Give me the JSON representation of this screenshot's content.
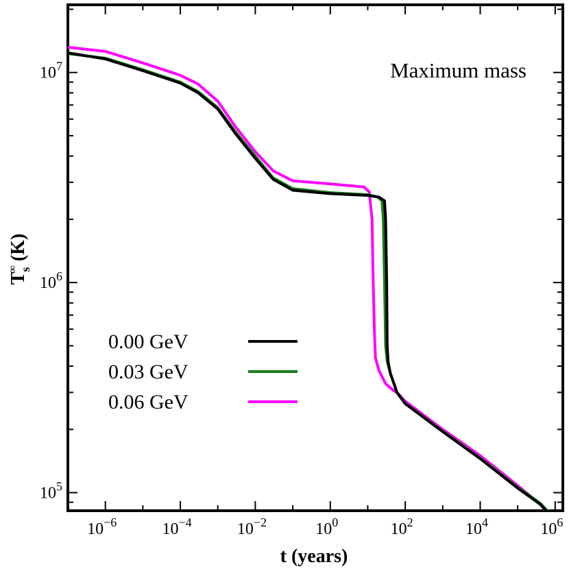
{
  "chart_data": {
    "type": "line",
    "title": "",
    "annotation": "Maximum mass",
    "xlabel": "t (years)",
    "ylabel": {
      "main": "T",
      "superscript": "∞",
      "subscript": "s",
      "unit": "(K)"
    },
    "xscale": "log",
    "yscale": "log",
    "xlim": [
      1e-07,
      1600000.0
    ],
    "ylim": [
      82000,
      21000000
    ],
    "grid": false,
    "legend_position": "lower-left",
    "x_ticks": [
      {
        "base": "10",
        "exp": "−6",
        "value": 1e-06
      },
      {
        "base": "10",
        "exp": "−4",
        "value": 0.0001
      },
      {
        "base": "10",
        "exp": "−2",
        "value": 0.01
      },
      {
        "base": "10",
        "exp": "0",
        "value": 1
      },
      {
        "base": "10",
        "exp": "2",
        "value": 100
      },
      {
        "base": "10",
        "exp": "4",
        "value": 10000
      },
      {
        "base": "10",
        "exp": "6",
        "value": 1000000
      }
    ],
    "y_ticks": [
      {
        "base": "10",
        "exp": "5",
        "value": 100000
      },
      {
        "base": "10",
        "exp": "6",
        "value": 1000000
      },
      {
        "base": "10",
        "exp": "7",
        "value": 10000000
      }
    ],
    "series": [
      {
        "name": "0.00 GeV",
        "color": "#000000",
        "x": [
          1e-07,
          1e-06,
          1e-05,
          0.0001,
          0.0003,
          0.001,
          0.003,
          0.01,
          0.03,
          0.1,
          1,
          10,
          20,
          28,
          30,
          32,
          33,
          35,
          40,
          50,
          60,
          100,
          1000,
          10000,
          100000,
          400000,
          800000
        ],
        "y": [
          12400000,
          11600000,
          10200000,
          8900000,
          8000000,
          6700000,
          5100000,
          3900000,
          3100000,
          2750000,
          2650000,
          2600000,
          2550000,
          2450000,
          2000000,
          1000000,
          500000,
          420000,
          370000,
          330000,
          300000,
          265000,
          195000,
          145000,
          105000,
          88000,
          77000
        ]
      },
      {
        "name": "0.03 GeV",
        "color": "#1a7f1a",
        "x": [
          1e-07,
          1e-06,
          1e-05,
          0.0001,
          0.0003,
          0.001,
          0.003,
          0.01,
          0.03,
          0.1,
          1,
          10,
          18,
          24,
          26,
          28,
          30,
          33,
          40,
          50,
          60,
          100,
          1000,
          10000,
          100000,
          400000,
          800000
        ],
        "y": [
          12300000,
          11700000,
          10300000,
          9000000,
          8100000,
          6800000,
          5200000,
          4000000,
          3150000,
          2800000,
          2680000,
          2620000,
          2560000,
          2450000,
          2000000,
          1000000,
          500000,
          420000,
          370000,
          330000,
          300000,
          266000,
          196000,
          146000,
          106000,
          89000,
          78000
        ]
      },
      {
        "name": "0.06 GeV",
        "color": "#ff00ff",
        "x": [
          1e-07,
          1e-06,
          1e-05,
          0.0001,
          0.0003,
          0.001,
          0.003,
          0.01,
          0.03,
          0.1,
          1,
          8,
          11,
          13,
          14,
          15,
          16,
          20,
          30,
          50,
          60,
          100,
          1000,
          10000,
          100000,
          400000,
          700000
        ],
        "y": [
          13200000,
          12600000,
          11100000,
          9700000,
          8800000,
          7300000,
          5500000,
          4200000,
          3400000,
          3050000,
          2950000,
          2850000,
          2700000,
          2000000,
          1000000,
          600000,
          440000,
          380000,
          330000,
          305000,
          300000,
          272000,
          200000,
          150000,
          108000,
          88000,
          78000
        ]
      }
    ]
  }
}
